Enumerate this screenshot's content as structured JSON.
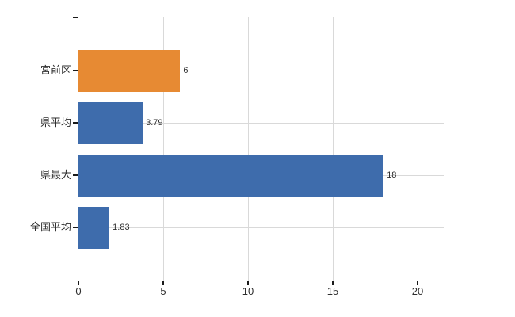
{
  "chart_data": {
    "type": "bar",
    "orientation": "horizontal",
    "title": "",
    "categories": [
      "宮前区",
      "県平均",
      "県最大",
      "全国平均"
    ],
    "values": [
      6,
      3.79,
      18,
      1.83
    ],
    "value_labels": [
      "6",
      "3.79",
      "18",
      "1.83"
    ],
    "bar_colors": [
      "#e78a33",
      "#3e6cac",
      "#3e6cac",
      "#3e6cac"
    ],
    "x_ticks": [
      "0",
      "5",
      "10",
      "15",
      "20"
    ],
    "x_tick_values": [
      0,
      5,
      10,
      15,
      20
    ],
    "xlim": [
      0,
      21.55
    ],
    "grid": true,
    "legend": false,
    "layout_hints": {
      "background": "#ffffff",
      "gridline_color": "#d9d9d9",
      "axis_color": "#1a1a1a",
      "label_color": "#2e2e2e",
      "top_border_dashed": true,
      "dashed_vertical_gridline_at": 20,
      "gridlines_horizontal_at_category_centers": true
    }
  }
}
